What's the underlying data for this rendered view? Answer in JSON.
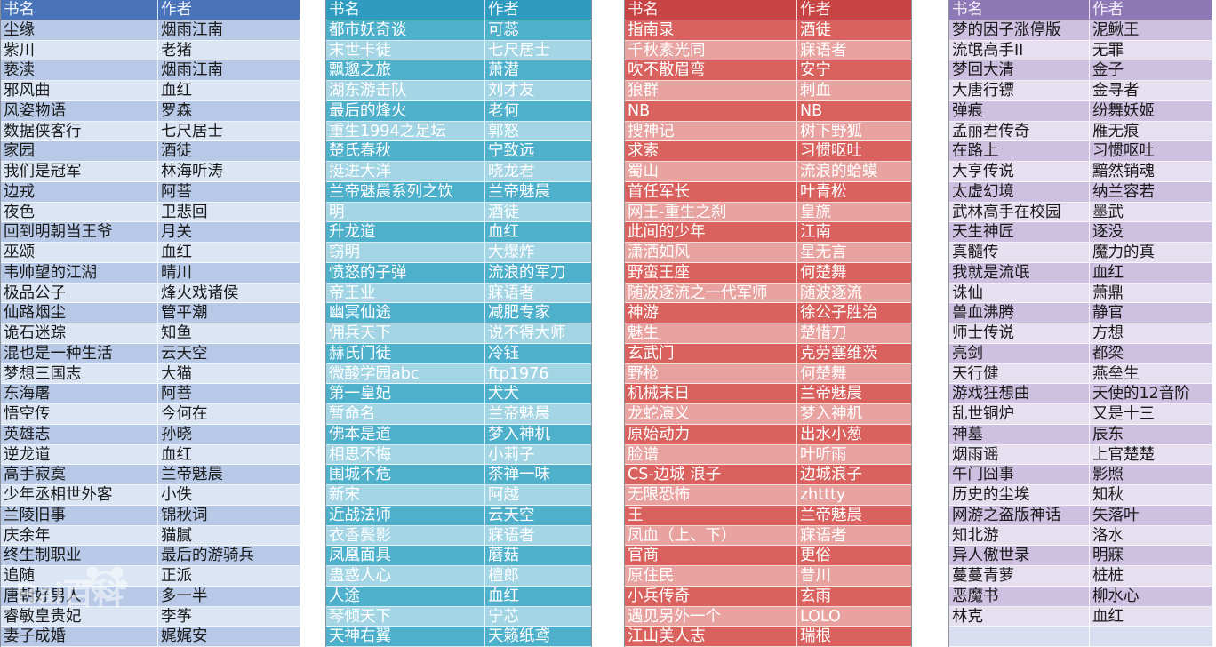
{
  "columns": [
    {
      "header": {
        "title": "书名",
        "author": "作者"
      },
      "rows": [
        {
          "title": "尘缘",
          "author": "烟雨江南"
        },
        {
          "title": "紫川",
          "author": "老猪"
        },
        {
          "title": "亵渎",
          "author": "烟雨江南"
        },
        {
          "title": "邪风曲",
          "author": "血红"
        },
        {
          "title": "风姿物语",
          "author": "罗森"
        },
        {
          "title": "数据侠客行",
          "author": "七尺居士"
        },
        {
          "title": "家园",
          "author": "酒徒"
        },
        {
          "title": "我们是冠军",
          "author": "林海听涛"
        },
        {
          "title": "边戎",
          "author": "阿菩"
        },
        {
          "title": "夜色",
          "author": "卫悲回"
        },
        {
          "title": "回到明朝当王爷",
          "author": "月关"
        },
        {
          "title": "巫颂",
          "author": "血红"
        },
        {
          "title": "韦帅望的江湖",
          "author": "晴川"
        },
        {
          "title": "极品公子",
          "author": "烽火戏诸侯"
        },
        {
          "title": "仙路烟尘",
          "author": "管平潮"
        },
        {
          "title": "诡石迷踪",
          "author": "知鱼"
        },
        {
          "title": "混也是一种生活",
          "author": "云天空"
        },
        {
          "title": "梦想三国志",
          "author": "大猫"
        },
        {
          "title": "东海屠",
          "author": "阿菩"
        },
        {
          "title": "悟空传",
          "author": "今何在"
        },
        {
          "title": "英雄志",
          "author": "孙晓"
        },
        {
          "title": "逆龙道",
          "author": "血红"
        },
        {
          "title": "高手寂寞",
          "author": "兰帝魅晨"
        },
        {
          "title": "少年丞相世外客",
          "author": "小佚"
        },
        {
          "title": "兰陵旧事",
          "author": "锦秋词"
        },
        {
          "title": "庆余年",
          "author": "猫腻"
        },
        {
          "title": "终生制职业",
          "author": "最后的游骑兵"
        },
        {
          "title": "追随",
          "author": "正派"
        },
        {
          "title": "唐朝好男人",
          "author": "多一半"
        },
        {
          "title": "睿敏皇贵妃",
          "author": "李筝"
        },
        {
          "title": "妻子成婚",
          "author": "娓娓安"
        }
      ]
    },
    {
      "header": {
        "title": "书名",
        "author": "作者"
      },
      "rows": [
        {
          "title": "都市妖奇谈",
          "author": "可蕊"
        },
        {
          "title": "末世卡徒",
          "author": "七尺居士"
        },
        {
          "title": "飘邈之旅",
          "author": "萧潜"
        },
        {
          "title": "湖东游击队",
          "author": "刘才友"
        },
        {
          "title": "最后的烽火",
          "author": "老何"
        },
        {
          "title": "重生1994之足坛",
          "author": "郭怒"
        },
        {
          "title": "楚氏春秋",
          "author": "宁致远"
        },
        {
          "title": "挺进大洋",
          "author": "晓龙君"
        },
        {
          "title": "兰帝魅晨系列之饮",
          "author": "兰帝魅晨"
        },
        {
          "title": "明",
          "author": "酒徒"
        },
        {
          "title": "升龙道",
          "author": "血红"
        },
        {
          "title": "窃明",
          "author": "大爆炸"
        },
        {
          "title": "愤怒的子弹",
          "author": "流浪的军刀"
        },
        {
          "title": "帝王业",
          "author": "寐语者"
        },
        {
          "title": "幽冥仙途",
          "author": "减肥专家"
        },
        {
          "title": "佣兵天下",
          "author": "说不得大师"
        },
        {
          "title": "赫氏门徒",
          "author": "冷钰"
        },
        {
          "title": "微酸学园abc",
          "author": "ftp1976"
        },
        {
          "title": "第一皇妃",
          "author": "犬犬"
        },
        {
          "title": "暂命名",
          "author": "兰帝魅晨"
        },
        {
          "title": "佛本是道",
          "author": "梦入神机"
        },
        {
          "title": "相思不悔",
          "author": "小莉子"
        },
        {
          "title": "围城不危",
          "author": "茶禅一味"
        },
        {
          "title": "新宋",
          "author": "阿越"
        },
        {
          "title": "近战法师",
          "author": "云天空"
        },
        {
          "title": "衣香鬓影",
          "author": "寐语者"
        },
        {
          "title": "凤凰面具",
          "author": "蘑菇"
        },
        {
          "title": "蛊惑人心",
          "author": "檀郎"
        },
        {
          "title": "人途",
          "author": "血红"
        },
        {
          "title": "琴倾天下",
          "author": "宁芯"
        },
        {
          "title": "天神右翼",
          "author": "天籁纸鸢"
        }
      ]
    },
    {
      "header": {
        "title": "书名",
        "author": "作者"
      },
      "rows": [
        {
          "title": "指南录",
          "author": "酒徒"
        },
        {
          "title": "千秋素光同",
          "author": "寐语者"
        },
        {
          "title": "吹不散眉弯",
          "author": "安宁"
        },
        {
          "title": "狼群",
          "author": "刺血"
        },
        {
          "title": "NB",
          "author": "NB"
        },
        {
          "title": "搜神记",
          "author": "树下野狐"
        },
        {
          "title": "求索",
          "author": "习惯呕吐"
        },
        {
          "title": "蜀山",
          "author": "流浪的蛤蟆"
        },
        {
          "title": "首任军长",
          "author": "叶青松"
        },
        {
          "title": "网王-重生之刹",
          "author": "皇旒"
        },
        {
          "title": "此间的少年",
          "author": "江南"
        },
        {
          "title": "潇洒如风",
          "author": "星无言"
        },
        {
          "title": "野蛮王座",
          "author": "何楚舞"
        },
        {
          "title": "随波逐流之一代军师",
          "author": "随波逐流"
        },
        {
          "title": "神游",
          "author": "徐公子胜治"
        },
        {
          "title": "魅生",
          "author": "楚惜刀"
        },
        {
          "title": "玄武门",
          "author": "克劳塞维茨"
        },
        {
          "title": "野枪",
          "author": "何楚舞"
        },
        {
          "title": "机械末日",
          "author": "兰帝魅晨"
        },
        {
          "title": "龙蛇演义",
          "author": "梦入神机"
        },
        {
          "title": "原始动力",
          "author": "出水小葱"
        },
        {
          "title": "脸谱",
          "author": "叶听雨"
        },
        {
          "title": "CS-边城 浪子",
          "author": "边城浪子"
        },
        {
          "title": "无限恐怖",
          "author": "zhttty"
        },
        {
          "title": "王",
          "author": "兰帝魅晨"
        },
        {
          "title": "凤血（上、下）",
          "author": "寐语者"
        },
        {
          "title": "官商",
          "author": "更俗"
        },
        {
          "title": "原住民",
          "author": "昔川"
        },
        {
          "title": "小兵传奇",
          "author": "玄雨"
        },
        {
          "title": "遇见另外一个",
          "author": "LOLO"
        },
        {
          "title": "江山美人志",
          "author": "瑞根"
        }
      ]
    },
    {
      "header": {
        "title": "书名",
        "author": "作者"
      },
      "rows": [
        {
          "title": "梦的因子涨停版",
          "author": "泥鳅王"
        },
        {
          "title": "流氓高手II",
          "author": "无罪"
        },
        {
          "title": "梦回大清",
          "author": "金子"
        },
        {
          "title": "大唐行镖",
          "author": "金寻者"
        },
        {
          "title": "弹痕",
          "author": "纷舞妖姬"
        },
        {
          "title": "孟丽君传奇",
          "author": "雁无痕"
        },
        {
          "title": "在路上",
          "author": "习惯呕吐"
        },
        {
          "title": "大亨传说",
          "author": "黯然销魂"
        },
        {
          "title": "太虚幻境",
          "author": "纳兰容若"
        },
        {
          "title": "武林高手在校园",
          "author": "墨武"
        },
        {
          "title": "天生神匠",
          "author": "逐没"
        },
        {
          "title": "真髓传",
          "author": "魔力的真"
        },
        {
          "title": "我就是流氓",
          "author": "血红"
        },
        {
          "title": "诛仙",
          "author": "萧鼎"
        },
        {
          "title": "兽血沸腾",
          "author": "静官"
        },
        {
          "title": "师士传说",
          "author": "方想"
        },
        {
          "title": "亮剑",
          "author": "都梁"
        },
        {
          "title": "天行健",
          "author": "燕垒生"
        },
        {
          "title": "游戏狂想曲",
          "author": "天使的12音阶"
        },
        {
          "title": "乱世铜炉",
          "author": "又是十三"
        },
        {
          "title": "神墓",
          "author": "辰东"
        },
        {
          "title": "烟雨谣",
          "author": "上官楚楚"
        },
        {
          "title": "午门囧事",
          "author": "影照"
        },
        {
          "title": "历史的尘埃",
          "author": "知秋"
        },
        {
          "title": "网游之盗版神话",
          "author": "失落叶"
        },
        {
          "title": "知北游",
          "author": "洛水"
        },
        {
          "title": "异人傲世录",
          "author": "明寐"
        },
        {
          "title": "蔓蔓青萝",
          "author": "桩桩"
        },
        {
          "title": "恶魔书",
          "author": "柳水心"
        },
        {
          "title": "林克",
          "author": "血红"
        },
        {
          "title": "",
          "author": ""
        }
      ]
    }
  ],
  "watermark": {
    "text": "Bai百科"
  },
  "colors": {
    "blue_header": "#4a74b9",
    "teal_header": "#2f9cbf",
    "red_header": "#c64544",
    "purple_header": "#8f78b6"
  }
}
